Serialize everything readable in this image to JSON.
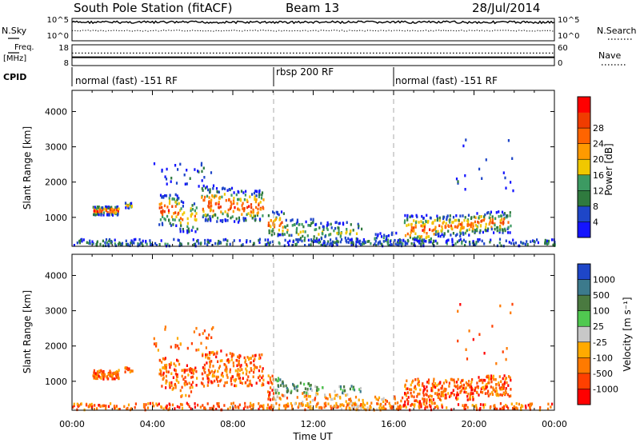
{
  "header": {
    "station": "South Pole Station (fitACF)",
    "beam": "Beam 13",
    "date": "28/Jul/2014"
  },
  "colors": {
    "power_scale": [
      "#1414ff",
      "#1e46c8",
      "#2f7a3e",
      "#3c9a62",
      "#f0c800",
      "#ff9a00",
      "#ff6400",
      "#f03c00",
      "#ff0000"
    ],
    "velocity_scale": [
      "#ff0000",
      "#ff4000",
      "#ff7a00",
      "#ffaa00",
      "#c8c8c8",
      "#50c850",
      "#4a7a40",
      "#3c7a8c",
      "#1e46c8"
    ]
  },
  "chart_data": [
    {
      "type": "line",
      "id": "nsky-nsearch",
      "left_label": "N.Sky",
      "right_label": "N.Search",
      "left_ticks": [
        "10^5",
        "10^0"
      ],
      "right_ticks": [
        "10^5",
        "10^0"
      ],
      "series": [
        {
          "name": "N.Sky",
          "style": "solid",
          "level": 0.85
        },
        {
          "name": "N.Search",
          "style": "dotted",
          "level": 0.45
        }
      ]
    },
    {
      "type": "line",
      "id": "freq-nave",
      "left_label_lines": [
        "Freq.",
        "[MHz]"
      ],
      "right_label": "Nave",
      "left_ticks": [
        "18",
        "8"
      ],
      "right_ticks": [
        "60",
        "0"
      ],
      "series": [
        {
          "name": "Freq.",
          "style": "solid",
          "value": 12
        },
        {
          "name": "Nave",
          "style": "dotted",
          "value": 36
        }
      ]
    },
    {
      "type": "table",
      "id": "cpid",
      "label": "CPID",
      "segments": [
        {
          "start_hr": 0,
          "end_hr": 10,
          "label": "normal (fast) -151 RF"
        },
        {
          "start_hr": 10,
          "end_hr": 16,
          "label": "rbsp 200 RF"
        },
        {
          "start_hr": 16,
          "end_hr": 24,
          "label": "normal (fast) -151 RF"
        }
      ]
    },
    {
      "type": "heatmap",
      "id": "power",
      "ylabel": "Slant Range [km]",
      "yticks": [
        1000,
        2000,
        3000,
        4000
      ],
      "ylim": [
        180,
        4600
      ],
      "colorbar_label": "Power [dB]",
      "colorbar_ticks": [
        4,
        8,
        12,
        16,
        20,
        24,
        28
      ],
      "colorbar_range": [
        0,
        32
      ]
    },
    {
      "type": "heatmap",
      "id": "velocity",
      "ylabel": "Slant Range [km]",
      "yticks": [
        1000,
        2000,
        3000,
        4000
      ],
      "ylim": [
        180,
        4600
      ],
      "colorbar_label": "Velocity [m s⁻¹]",
      "colorbar_ticks": [
        "-1000",
        "-500",
        "-100",
        "-25",
        "25",
        "100",
        "500",
        "1000"
      ],
      "xlabel": "Time UT",
      "xticks": [
        "00:00",
        "04:00",
        "08:00",
        "12:00",
        "16:00",
        "20:00",
        "00:00"
      ],
      "xlim": [
        0,
        24
      ]
    }
  ]
}
